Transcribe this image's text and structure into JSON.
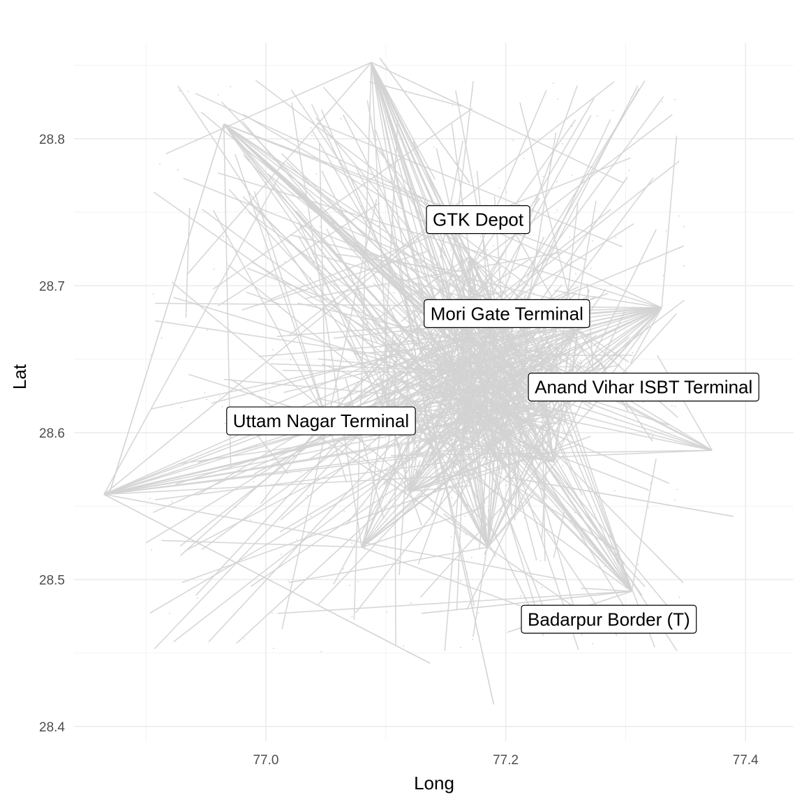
{
  "chart_data": {
    "type": "line",
    "title": "",
    "xlabel": "Long",
    "ylabel": "Lat",
    "xlim": [
      76.84,
      77.44
    ],
    "ylim": [
      28.39,
      28.865
    ],
    "x_ticks": [
      77.0,
      77.2,
      77.4
    ],
    "x_tick_labels": [
      "77.0",
      "77.2",
      "77.4"
    ],
    "y_ticks": [
      28.4,
      28.5,
      28.6,
      28.7,
      28.8
    ],
    "y_tick_labels": [
      "28.4",
      "28.5",
      "28.6",
      "28.7",
      "28.8"
    ],
    "grid": true,
    "legend": "none",
    "line_color": "#d3d3d3",
    "hubs": [
      {
        "x": 76.865,
        "y": 28.558
      },
      {
        "x": 76.965,
        "y": 28.81
      },
      {
        "x": 77.088,
        "y": 28.852
      },
      {
        "x": 77.305,
        "y": 28.492
      },
      {
        "x": 77.33,
        "y": 28.685
      },
      {
        "x": 77.372,
        "y": 28.588
      },
      {
        "x": 77.185,
        "y": 28.522
      },
      {
        "x": 77.08,
        "y": 28.522
      },
      {
        "x": 77.18,
        "y": 28.66
      },
      {
        "x": 77.21,
        "y": 28.64
      },
      {
        "x": 77.17,
        "y": 28.72
      },
      {
        "x": 77.05,
        "y": 28.61
      },
      {
        "x": 77.24,
        "y": 28.58
      },
      {
        "x": 77.12,
        "y": 28.56
      },
      {
        "x": 77.26,
        "y": 28.67
      }
    ],
    "annotations": [
      {
        "label": "GTK Depot",
        "x": 77.177,
        "y": 28.745
      },
      {
        "label": "Mori Gate Terminal",
        "x": 77.201,
        "y": 28.681
      },
      {
        "label": "Anand Vihar ISBT Terminal",
        "x": 77.315,
        "y": 28.631
      },
      {
        "label": "Uttam Nagar Terminal",
        "x": 77.046,
        "y": 28.608
      },
      {
        "label": "Badarpur Border (T)",
        "x": 77.286,
        "y": 28.473
      }
    ]
  }
}
